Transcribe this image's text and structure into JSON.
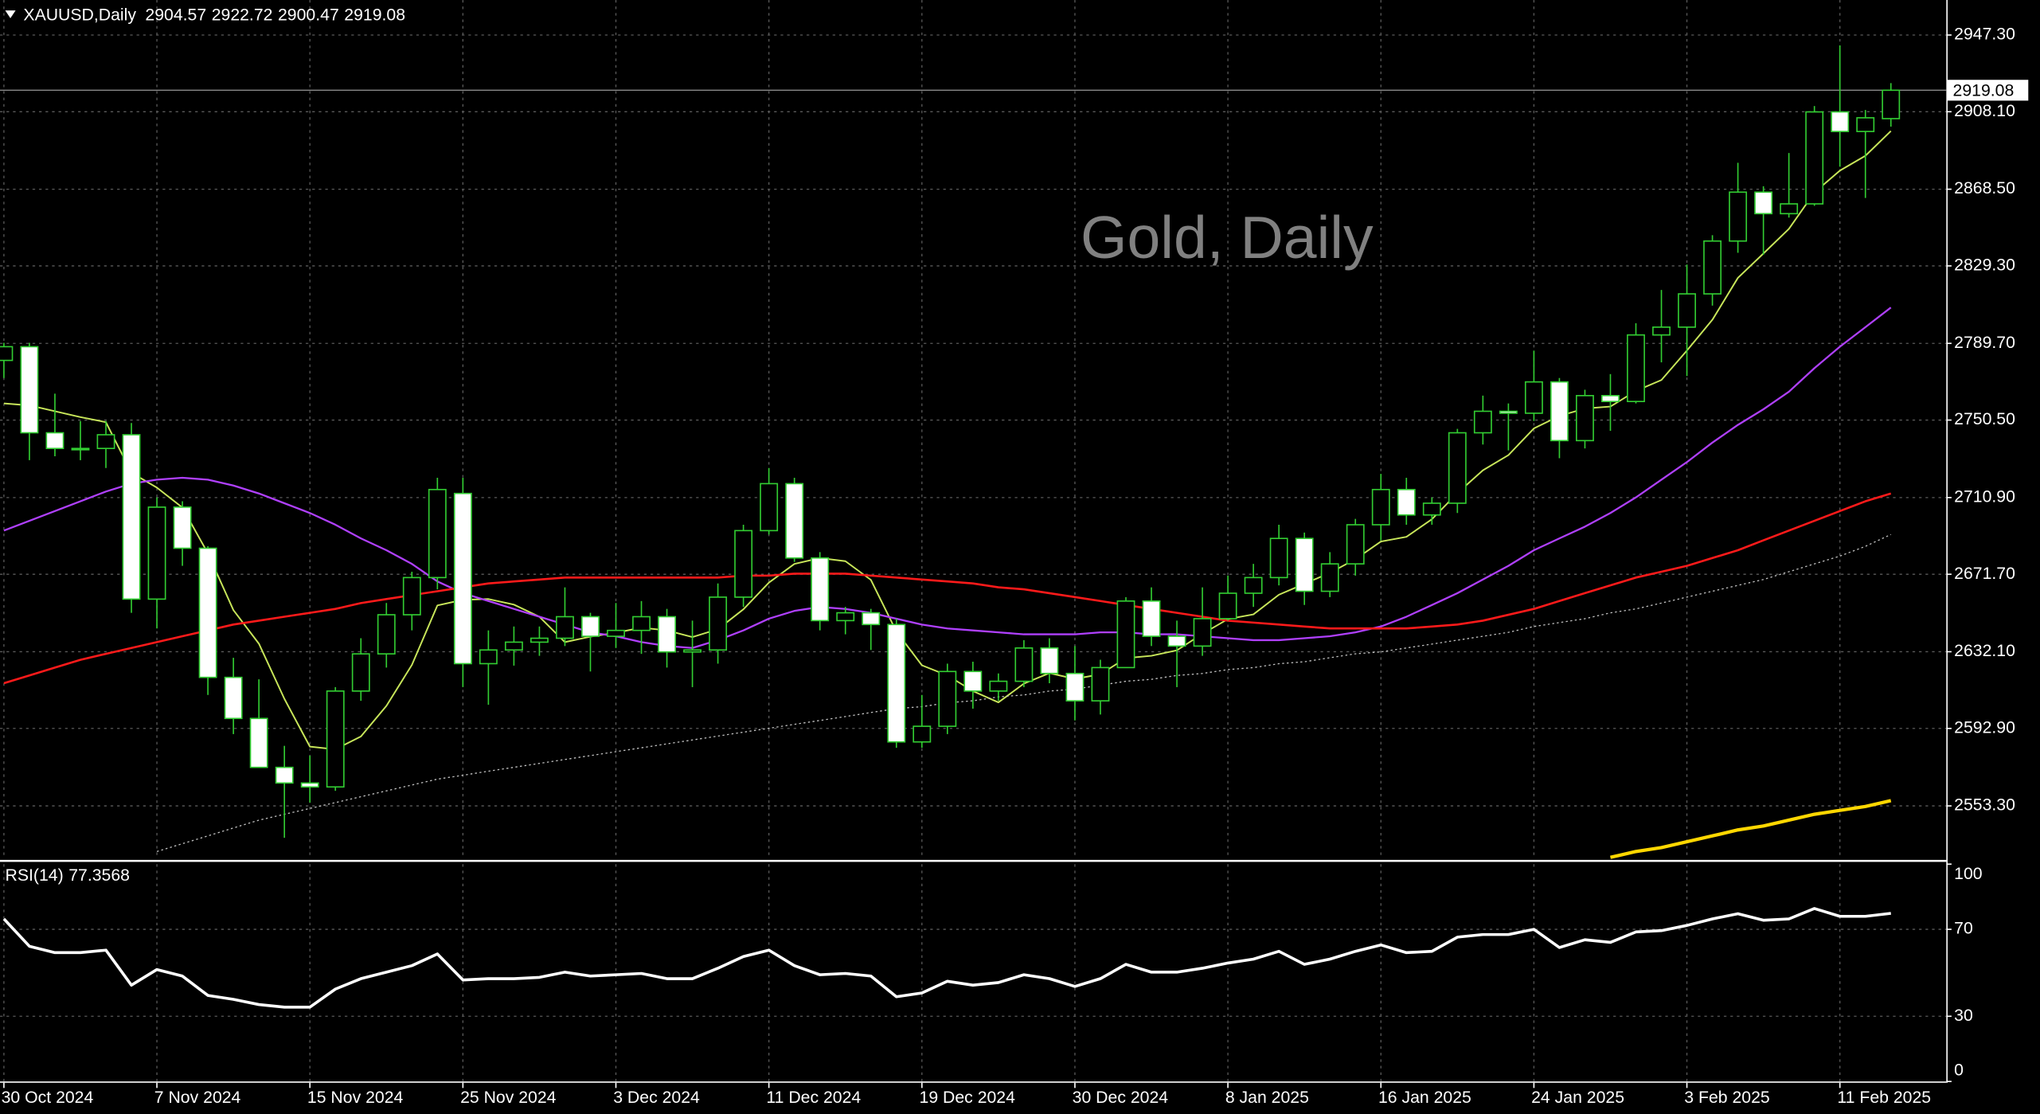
{
  "chart_data": {
    "type": "candlestick",
    "symbol": "XAUUSD,Daily",
    "watermark": "Gold, Daily",
    "x": [
      "30 Oct 2024",
      null,
      null,
      null,
      null,
      null,
      "7 Nov 2024",
      null,
      null,
      null,
      null,
      null,
      "15 Nov 2024",
      null,
      null,
      null,
      null,
      null,
      "25 Nov 2024",
      null,
      null,
      null,
      null,
      null,
      "3 Dec 2024",
      null,
      null,
      null,
      null,
      null,
      "11 Dec 2024",
      null,
      null,
      null,
      null,
      null,
      "19 Dec 2024",
      null,
      null,
      null,
      null,
      null,
      "30 Dec 2024",
      null,
      null,
      null,
      null,
      null,
      "8 Jan 2025",
      null,
      null,
      null,
      null,
      null,
      "16 Jan 2025",
      null,
      null,
      null,
      null,
      null,
      "24 Jan 2025",
      null,
      null,
      null,
      null,
      null,
      "3 Feb 2025",
      null,
      null,
      null,
      null,
      null,
      "11 Feb 2025",
      null,
      null
    ],
    "open": [
      2781,
      2788,
      2744,
      2736,
      2736,
      2743,
      2659,
      2706,
      2685,
      2619,
      2598,
      2573,
      2565,
      2563,
      2612,
      2631,
      2651,
      2670,
      2713,
      2626,
      2633,
      2637,
      2639,
      2650,
      2640,
      2643,
      2650,
      2632,
      2633,
      2660,
      2694,
      2718,
      2680,
      2648,
      2652,
      2646,
      2586,
      2594,
      2622,
      2612,
      2617,
      2634,
      2621,
      2607,
      2624,
      2658,
      2640,
      2635,
      2649,
      2662,
      2670,
      2690,
      2663,
      2677,
      2697,
      2715,
      2702,
      2708,
      2744,
      2755,
      2754,
      2770,
      2740,
      2763,
      2760,
      2794,
      2798,
      2815,
      2842,
      2867,
      2856,
      2861,
      2908,
      2898,
      2904.57
    ],
    "high": [
      2790,
      2790,
      2764,
      2750,
      2750,
      2749,
      2711,
      2709,
      2686,
      2629,
      2618,
      2584,
      2579,
      2614,
      2639,
      2657,
      2673,
      2721,
      2721,
      2643,
      2645,
      2645,
      2665,
      2652,
      2657,
      2658,
      2654,
      2648,
      2667,
      2697,
      2726,
      2721,
      2683,
      2655,
      2654,
      2649,
      2610,
      2626,
      2627,
      2621,
      2638,
      2639,
      2635,
      2628,
      2660,
      2665,
      2648,
      2665,
      2671,
      2677,
      2697,
      2693,
      2683,
      2700,
      2723,
      2721,
      2711,
      2746,
      2763,
      2759,
      2786,
      2772,
      2766,
      2774,
      2800,
      2817,
      2830,
      2845,
      2882,
      2870,
      2887,
      2911,
      2942,
      2909,
      2922.72
    ],
    "low": [
      2772,
      2730,
      2732,
      2730,
      2726,
      2652,
      2644,
      2676,
      2610,
      2590,
      2573,
      2537,
      2555,
      2561,
      2607,
      2624,
      2643,
      2664,
      2614,
      2605,
      2625,
      2630,
      2635,
      2622,
      2634,
      2631,
      2624,
      2614,
      2626,
      2655,
      2692,
      2678,
      2643,
      2641,
      2633,
      2583,
      2583,
      2590,
      2603,
      2607,
      2614,
      2616,
      2597,
      2600,
      2624,
      2635,
      2614,
      2630,
      2648,
      2655,
      2666,
      2656,
      2660,
      2671,
      2689,
      2697,
      2697,
      2703,
      2738,
      2735,
      2750,
      2731,
      2736,
      2745,
      2759,
      2780,
      2773,
      2809,
      2836,
      2835,
      2854,
      2860,
      2880,
      2864,
      2900.47
    ],
    "close": [
      2788,
      2744,
      2736,
      2736,
      2743,
      2659,
      2706,
      2685,
      2619,
      2598,
      2573,
      2565,
      2563,
      2612,
      2631,
      2651,
      2670,
      2715,
      2626,
      2633,
      2637,
      2639,
      2650,
      2640,
      2643,
      2650,
      2632,
      2633,
      2660,
      2694,
      2718,
      2680,
      2648,
      2652,
      2646,
      2586,
      2594,
      2622,
      2612,
      2617,
      2634,
      2621,
      2607,
      2624,
      2658,
      2640,
      2635,
      2649,
      2662,
      2670,
      2690,
      2663,
      2677,
      2697,
      2715,
      2702,
      2708,
      2744,
      2755,
      2754,
      2770,
      2740,
      2763,
      2760,
      2794,
      2798,
      2815,
      2842,
      2867,
      2856,
      2861,
      2908,
      2898,
      2905,
      2919.08
    ],
    "up_color": "#32cd32",
    "down_color": "#ffffff",
    "series": [
      {
        "color": "#c8e65a",
        "width": 1.2,
        "style": "solid",
        "values": [
          2759,
          2758,
          2755,
          2752,
          2749.4,
          2723.6,
          2716,
          2705.8,
          2682.4,
          2653.4,
          2636.2,
          2608,
          2583.6,
          2582.2,
          2588.8,
          2604.4,
          2625.4,
          2655.8,
          2658.6,
          2659,
          2656.2,
          2650,
          2637,
          2639.8,
          2641.8,
          2644.4,
          2643,
          2639.6,
          2643.6,
          2653.8,
          2667.4,
          2677,
          2680,
          2678.4,
          2668.8,
          2642.4,
          2625.2,
          2620,
          2612,
          2606.2,
          2615.8,
          2621.2,
          2618.2,
          2620.6,
          2628.8,
          2630,
          2632.8,
          2641.2,
          2648.8,
          2651.2,
          2661.2,
          2666.8,
          2672.4,
          2679.4,
          2688.4,
          2690.8,
          2699.8,
          2713.2,
          2724.8,
          2732.6,
          2746.2,
          2752.6,
          2756.4,
          2757.4,
          2765.4,
          2771,
          2786,
          2801.8,
          2823.2,
          2835.6,
          2848.2,
          2866.8,
          2878,
          2885.6,
          2898.2
        ]
      },
      {
        "color": "#b040ff",
        "width": 1.4,
        "style": "solid",
        "values": [
          2694,
          2699,
          2704,
          2709,
          2714,
          2718,
          2720,
          2721,
          2720,
          2717,
          2713,
          2708,
          2703,
          2697,
          2690,
          2684,
          2677,
          2668,
          2662,
          2658,
          2654,
          2650,
          2646,
          2642,
          2640,
          2637,
          2635,
          2634,
          2638,
          2643,
          2649,
          2653,
          2655,
          2654,
          2652,
          2649,
          2646,
          2644,
          2643,
          2642,
          2641,
          2641,
          2641,
          2642,
          2642,
          2641,
          2641,
          2640,
          2639,
          2638,
          2638,
          2639,
          2640,
          2642,
          2645,
          2650,
          2656,
          2662,
          2669,
          2676,
          2684,
          2690,
          2696,
          2703,
          2711,
          2720,
          2729,
          2739,
          2748,
          2756,
          2765,
          2777,
          2788,
          2798,
          2808
        ]
      },
      {
        "color": "#ff1a1a",
        "width": 1.6,
        "style": "solid",
        "values": [
          2616,
          2620,
          2624,
          2628,
          2631,
          2634,
          2637,
          2640,
          2643,
          2646,
          2648,
          2650,
          2652,
          2654,
          2657,
          2659,
          2661,
          2663,
          2665,
          2667,
          2668,
          2669,
          2670,
          2670,
          2670,
          2670,
          2670,
          2670,
          2670,
          2671,
          2671,
          2672,
          2672,
          2672,
          2671,
          2670,
          2669,
          2668,
          2667,
          2665,
          2664,
          2662,
          2660,
          2658,
          2656,
          2654,
          2652,
          2650,
          2648,
          2647,
          2646,
          2645,
          2644,
          2644,
          2644,
          2644,
          2645,
          2646,
          2648,
          2651,
          2654,
          2658,
          2662,
          2666,
          2670,
          2673,
          2676,
          2680,
          2684,
          2689,
          2694,
          2699,
          2704,
          2709,
          2713
        ]
      },
      {
        "color": "#c0c0c0",
        "width": 0.8,
        "style": "dotted",
        "values": [
          null,
          null,
          null,
          null,
          null,
          null,
          2530,
          2534,
          2538,
          2542,
          2546,
          2549,
          2552,
          2555,
          2558,
          2561,
          2564,
          2567,
          2569,
          2571,
          2573,
          2575,
          2577,
          2579,
          2581,
          2583,
          2585,
          2587,
          2589,
          2591,
          2593,
          2595,
          2597,
          2599,
          2601,
          2603,
          2604,
          2606,
          2607,
          2609,
          2610,
          2612,
          2613,
          2615,
          2617,
          2618,
          2620,
          2621,
          2623,
          2624,
          2626,
          2627,
          2629,
          2631,
          2632,
          2634,
          2636,
          2638,
          2640,
          2642,
          2645,
          2647,
          2649,
          2652,
          2654,
          2657,
          2660,
          2663,
          2666,
          2669,
          2673,
          2677,
          2681,
          2686,
          2692
        ]
      },
      {
        "color": "#ffd700",
        "width": 2.6,
        "style": "solid",
        "values": [
          null,
          null,
          null,
          null,
          null,
          null,
          null,
          null,
          null,
          null,
          null,
          null,
          null,
          null,
          null,
          null,
          null,
          null,
          null,
          null,
          null,
          null,
          null,
          null,
          null,
          null,
          null,
          null,
          null,
          null,
          null,
          null,
          null,
          null,
          null,
          null,
          null,
          null,
          null,
          null,
          null,
          null,
          null,
          null,
          null,
          null,
          null,
          null,
          null,
          null,
          null,
          null,
          null,
          null,
          null,
          null,
          null,
          null,
          null,
          null,
          null,
          null,
          null,
          2527,
          2530,
          2532,
          2535,
          2538,
          2541,
          2543,
          2546,
          2549,
          2551,
          2553,
          2556
        ]
      }
    ],
    "ylim": [
      2526.2,
      2965.2
    ],
    "yticks": [
      {
        "value": 2947.3,
        "label": "2947.30"
      },
      {
        "value": 2908.1,
        "label": "2908.10"
      },
      {
        "value": 2868.5,
        "label": "2868.50"
      },
      {
        "value": 2829.3,
        "label": "2829.30"
      },
      {
        "value": 2789.7,
        "label": "2789.70"
      },
      {
        "value": 2750.5,
        "label": "2750.50"
      },
      {
        "value": 2710.9,
        "label": "2710.90"
      },
      {
        "value": 2671.7,
        "label": "2671.70"
      },
      {
        "value": 2632.1,
        "label": "2632.10"
      },
      {
        "value": 2592.9,
        "label": "2592.90"
      },
      {
        "value": 2553.3,
        "label": "2553.30"
      }
    ],
    "grid": true,
    "rsi": {
      "label": "RSI(14)",
      "color": "#ffffff",
      "values": [
        74.8,
        62.2,
        59.3,
        59.3,
        60.4,
        44.3,
        51.5,
        48.5,
        39.6,
        37.8,
        35.4,
        34.2,
        34.2,
        42.5,
        47.3,
        50.3,
        53.3,
        58.7,
        46.7,
        47.3,
        47.3,
        47.9,
        50.3,
        48.5,
        49.1,
        49.7,
        47.3,
        47.3,
        52.1,
        57.5,
        60.4,
        53.3,
        49.1,
        49.7,
        48.5,
        39.0,
        40.7,
        46.1,
        44.3,
        45.5,
        49.1,
        47.3,
        43.7,
        47.3,
        53.9,
        50.3,
        50.3,
        52.1,
        54.5,
        56.3,
        59.9,
        53.9,
        56.3,
        59.9,
        62.8,
        59.3,
        59.9,
        66.4,
        67.6,
        67.6,
        70,
        61.6,
        65.2,
        64.0,
        68.8,
        69.4,
        71.8,
        74.8,
        77.2,
        74.2,
        74.8,
        79.6,
        76.0,
        76.0,
        77.3568
      ],
      "ylim": [
        0,
        100
      ],
      "yticks": [
        100,
        70,
        30,
        0
      ],
      "levels": [
        70,
        30
      ]
    }
  }
}
